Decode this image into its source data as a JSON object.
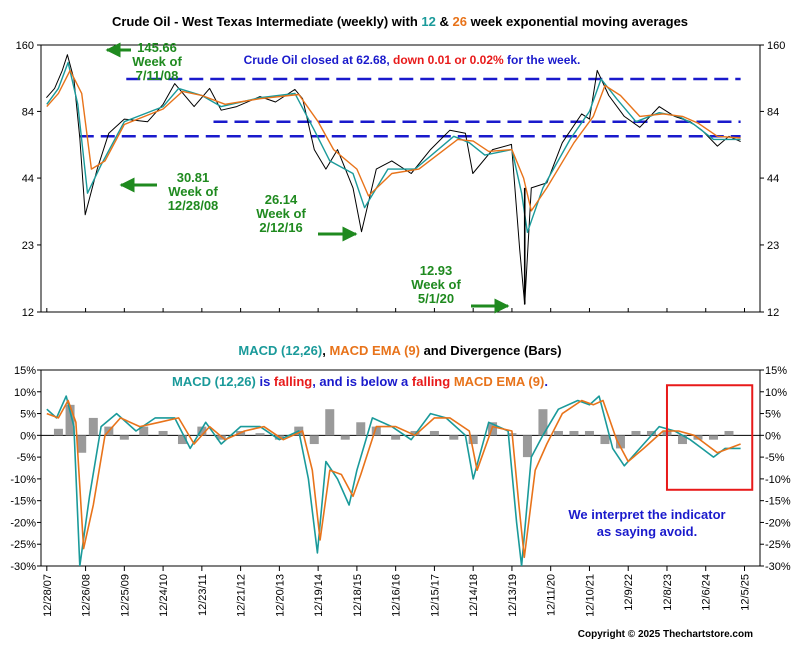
{
  "chart_data": [
    {
      "type": "line",
      "title_parts": [
        {
          "text": "Crude Oil - West Texas Intermediate (weekly) with ",
          "color": "#000000"
        },
        {
          "text": "12",
          "color": "#1a9a9a"
        },
        {
          "text": " & ",
          "color": "#000000"
        },
        {
          "text": "26",
          "color": "#e8731a"
        },
        {
          "text": " week exponential moving averages",
          "color": "#000000"
        }
      ],
      "y_scale": "log",
      "ylim": [
        12,
        160
      ],
      "y_ticks": [
        "160",
        "84",
        "44",
        "23",
        "12"
      ],
      "y_tick_values": [
        160,
        84,
        44,
        23,
        12
      ],
      "reference_lines": [
        115,
        76,
        66
      ],
      "series": [
        {
          "name": "Price",
          "color": "#000000",
          "x": [
            2007.99,
            2008.2,
            2008.4,
            2008.53,
            2008.7,
            2008.85,
            2008.99,
            2009.3,
            2009.6,
            2010.0,
            2010.6,
            2011.0,
            2011.3,
            2011.8,
            2012.2,
            2012.5,
            2012.9,
            2013.5,
            2013.9,
            2014.4,
            2014.6,
            2014.9,
            2015.2,
            2015.5,
            2015.9,
            2016.12,
            2016.5,
            2016.9,
            2017.4,
            2017.9,
            2018.4,
            2018.8,
            2018.99,
            2019.5,
            2019.99,
            2020.2,
            2020.33,
            2020.5,
            2020.9,
            2021.3,
            2021.8,
            2022.0,
            2022.2,
            2022.5,
            2022.9,
            2023.3,
            2023.8,
            2024.2,
            2024.6,
            2024.9,
            2025.3,
            2025.6,
            2025.9
          ],
          "y": [
            96,
            105,
            125,
            145.66,
            115,
            65,
            30.81,
            48,
            68,
            78,
            76,
            90,
            110,
            88,
            105,
            85,
            88,
            97,
            92,
            104,
            95,
            58,
            48,
            58,
            40,
            26.14,
            48,
            52,
            46,
            58,
            70,
            68,
            46,
            58,
            61,
            22,
            12.93,
            40,
            42,
            62,
            82,
            78,
            125,
            98,
            80,
            72,
            88,
            80,
            76,
            70,
            60,
            66,
            62.68
          ]
        },
        {
          "name": "EMA 12",
          "color": "#1a9a9a",
          "x": [
            2008.0,
            2008.3,
            2008.55,
            2008.8,
            2009.05,
            2009.4,
            2010.0,
            2011.0,
            2011.4,
            2012.0,
            2012.5,
            2013.5,
            2014.4,
            2014.9,
            2015.3,
            2015.9,
            2016.2,
            2016.8,
            2017.5,
            2018.5,
            2018.9,
            2019.3,
            2020.0,
            2020.25,
            2020.4,
            2020.8,
            2021.5,
            2022.0,
            2022.3,
            2022.7,
            2023.2,
            2023.8,
            2024.3,
            2024.7,
            2025.2,
            2025.9
          ],
          "y": [
            90,
            105,
            135,
            90,
            38,
            50,
            76,
            88,
            105,
            98,
            88,
            96,
            100,
            70,
            52,
            46,
            33,
            48,
            48,
            66,
            62,
            55,
            58,
            38,
            26,
            40,
            64,
            84,
            115,
            95,
            76,
            83,
            80,
            74,
            64,
            64
          ]
        },
        {
          "name": "EMA 26",
          "color": "#e8731a",
          "x": [
            2008.0,
            2008.3,
            2008.6,
            2008.9,
            2009.15,
            2009.5,
            2010.0,
            2011.0,
            2011.5,
            2012.0,
            2012.6,
            2013.5,
            2014.5,
            2015.0,
            2015.4,
            2016.0,
            2016.3,
            2016.9,
            2017.6,
            2018.6,
            2019.0,
            2019.4,
            2020.0,
            2020.3,
            2020.5,
            2020.9,
            2021.6,
            2022.1,
            2022.4,
            2022.8,
            2023.3,
            2023.9,
            2024.4,
            2024.8,
            2025.3,
            2025.9
          ],
          "y": [
            88,
            100,
            125,
            100,
            48,
            52,
            74,
            86,
            102,
            98,
            90,
            95,
            99,
            76,
            58,
            48,
            37,
            46,
            48,
            64,
            63,
            57,
            58,
            44,
            32,
            40,
            62,
            80,
            108,
            98,
            80,
            82,
            80,
            75,
            66,
            65
          ]
        }
      ],
      "annotations": [
        {
          "lines": [
            "145.66",
            "Week of",
            "7/11/08"
          ],
          "color": "#1f8a1f",
          "arrow": "left"
        },
        {
          "lines": [
            "30.81",
            "Week of",
            "12/28/08"
          ],
          "color": "#1f8a1f",
          "arrow": "left"
        },
        {
          "lines": [
            "26.14",
            "Week of",
            "2/12/16"
          ],
          "color": "#1f8a1f",
          "arrow": "right"
        },
        {
          "lines": [
            "12.93",
            "Week of",
            "5/1/20"
          ],
          "color": "#1f8a1f",
          "arrow": "right"
        }
      ],
      "note_parts": [
        {
          "text": "Crude Oil closed at 62.68, ",
          "color": "#1a1acc"
        },
        {
          "text": "down 0.01 or 0.02%",
          "color": "#e81a1a"
        },
        {
          "text": " for the week.",
          "color": "#1a1acc"
        }
      ]
    },
    {
      "type": "line",
      "title_parts": [
        {
          "text": "MACD (12,26)",
          "color": "#1a9a9a"
        },
        {
          "text": ", ",
          "color": "#000000"
        },
        {
          "text": "MACD EMA (9)",
          "color": "#e8731a"
        },
        {
          "text": " and Divergence (Bars)",
          "color": "#000000"
        }
      ],
      "ylim": [
        -30,
        15
      ],
      "y_ticks": [
        "15%",
        "10%",
        "5%",
        "0%",
        "-5%",
        "-10%",
        "-15%",
        "-20%",
        "-25%",
        "-30%"
      ],
      "y_tick_values": [
        15,
        10,
        5,
        0,
        -5,
        -10,
        -15,
        -20,
        -25,
        -30
      ],
      "series": [
        {
          "name": "MACD (12,26)",
          "color": "#1a9a9a",
          "x": [
            2008.0,
            2008.25,
            2008.5,
            2008.7,
            2008.85,
            2009.1,
            2009.4,
            2009.8,
            2010.3,
            2010.8,
            2011.3,
            2011.7,
            2012.1,
            2012.5,
            2013.0,
            2013.5,
            2014.0,
            2014.5,
            2014.75,
            2014.98,
            2015.2,
            2015.5,
            2015.8,
            2016.0,
            2016.4,
            2016.9,
            2017.4,
            2017.9,
            2018.3,
            2018.8,
            2019.0,
            2019.4,
            2019.9,
            2020.12,
            2020.25,
            2020.5,
            2020.8,
            2021.2,
            2021.7,
            2022.0,
            2022.25,
            2022.6,
            2022.9,
            2023.3,
            2023.8,
            2024.2,
            2024.6,
            2024.9,
            2025.2,
            2025.5,
            2025.9
          ],
          "y": [
            6,
            4,
            9,
            2,
            -30,
            -14,
            2,
            5,
            1,
            4,
            4,
            -3,
            3,
            -2,
            2,
            2,
            -1,
            1,
            -10,
            -27,
            -6,
            -10,
            -16,
            -8,
            4,
            2,
            -1,
            5,
            4,
            0,
            -10,
            3,
            1,
            -20,
            -30,
            -5,
            0,
            6,
            8,
            7,
            9,
            -3,
            -7,
            -3,
            2,
            1,
            -1,
            -3,
            -5,
            -3,
            -3
          ]
        },
        {
          "name": "MACD EMA (9)",
          "color": "#e8731a",
          "x": [
            2008.0,
            2008.3,
            2008.55,
            2008.75,
            2008.95,
            2009.2,
            2009.5,
            2009.9,
            2010.4,
            2010.9,
            2011.4,
            2011.8,
            2012.2,
            2012.6,
            2013.1,
            2013.6,
            2014.1,
            2014.6,
            2014.85,
            2015.05,
            2015.3,
            2015.6,
            2015.9,
            2016.1,
            2016.5,
            2017.0,
            2017.5,
            2018.0,
            2018.4,
            2018.9,
            2019.1,
            2019.5,
            2020.0,
            2020.18,
            2020.32,
            2020.6,
            2020.9,
            2021.3,
            2021.8,
            2022.1,
            2022.35,
            2022.7,
            2023.0,
            2023.4,
            2023.9,
            2024.3,
            2024.7,
            2025.0,
            2025.3,
            2025.6,
            2025.9
          ],
          "y": [
            5,
            4,
            8,
            3,
            -26,
            -16,
            0,
            4,
            2,
            3,
            4,
            -2,
            2,
            -1,
            1,
            2,
            -1,
            1,
            -8,
            -24,
            -8,
            -9,
            -14,
            -9,
            2,
            2,
            0,
            4,
            4,
            1,
            -8,
            2,
            1,
            -16,
            -28,
            -8,
            -2,
            5,
            8,
            7,
            8,
            -1,
            -6,
            -3,
            1,
            1,
            0,
            -2,
            -4,
            -3,
            -2
          ]
        }
      ],
      "divergence_bars": {
        "x": [
          2008.3,
          2008.6,
          2008.9,
          2009.2,
          2009.6,
          2010.0,
          2010.5,
          2011.0,
          2011.5,
          2012.0,
          2012.5,
          2013.0,
          2013.5,
          2014.0,
          2014.5,
          2014.9,
          2015.3,
          2015.7,
          2016.1,
          2016.5,
          2017.0,
          2017.5,
          2018.0,
          2018.5,
          2019.0,
          2019.5,
          2020.0,
          2020.4,
          2020.8,
          2021.2,
          2021.6,
          2022.0,
          2022.4,
          2022.8,
          2023.2,
          2023.6,
          2024.0,
          2024.4,
          2024.8,
          2025.2,
          2025.6
        ],
        "y": [
          1.5,
          7,
          -4,
          4,
          2,
          -1,
          2,
          1,
          -2,
          2,
          -1,
          1,
          0.5,
          -1,
          2,
          -2,
          6,
          -1,
          3,
          2,
          -1,
          1,
          1,
          -1,
          -2,
          3,
          0.5,
          -5,
          6,
          1,
          1,
          1,
          -2,
          -3,
          1,
          1,
          1,
          -2,
          -1,
          -1,
          1
        ]
      },
      "highlight_box": {
        "x": [
          2024.0,
          2026.2
        ],
        "y": [
          -12.5,
          11.5
        ],
        "color": "#e81a1a"
      },
      "note_parts": [
        {
          "text": "MACD (12,26)",
          "color": "#1a9a9a"
        },
        {
          "text": " is ",
          "color": "#1a1acc"
        },
        {
          "text": "falling",
          "color": "#e81a1a"
        },
        {
          "text": ", and is below a ",
          "color": "#1a1acc"
        },
        {
          "text": "falling",
          "color": "#e81a1a"
        },
        {
          "text": " ",
          "color": "#1a1acc"
        },
        {
          "text": "MACD EMA (9)",
          "color": "#e8731a"
        },
        {
          "text": ".",
          "color": "#1a1acc"
        }
      ],
      "interpretation_lines": [
        "We interpret the indicator",
        "as saying avoid."
      ],
      "interpretation_color": "#1a1acc"
    }
  ],
  "x_axis": {
    "tick_labels": [
      "12/28/07",
      "12/26/08",
      "12/25/09",
      "12/24/10",
      "12/23/11",
      "12/21/12",
      "12/20/13",
      "12/19/14",
      "12/18/15",
      "12/16/16",
      "12/15/17",
      "12/14/18",
      "12/13/19",
      "12/11/20",
      "12/10/21",
      "12/9/22",
      "12/8/23",
      "12/6/24",
      "12/5/25"
    ],
    "tick_values": [
      2008.0,
      2009.0,
      2010.0,
      2011.0,
      2012.0,
      2013.0,
      2014.0,
      2015.0,
      2016.0,
      2017.0,
      2018.0,
      2019.0,
      2020.0,
      2021.0,
      2022.0,
      2023.0,
      2024.0,
      2025.0,
      2026.0
    ],
    "xlim": [
      2007.85,
      2026.4
    ]
  },
  "copyright": "Copyright © 2025 Thechartstore.com"
}
